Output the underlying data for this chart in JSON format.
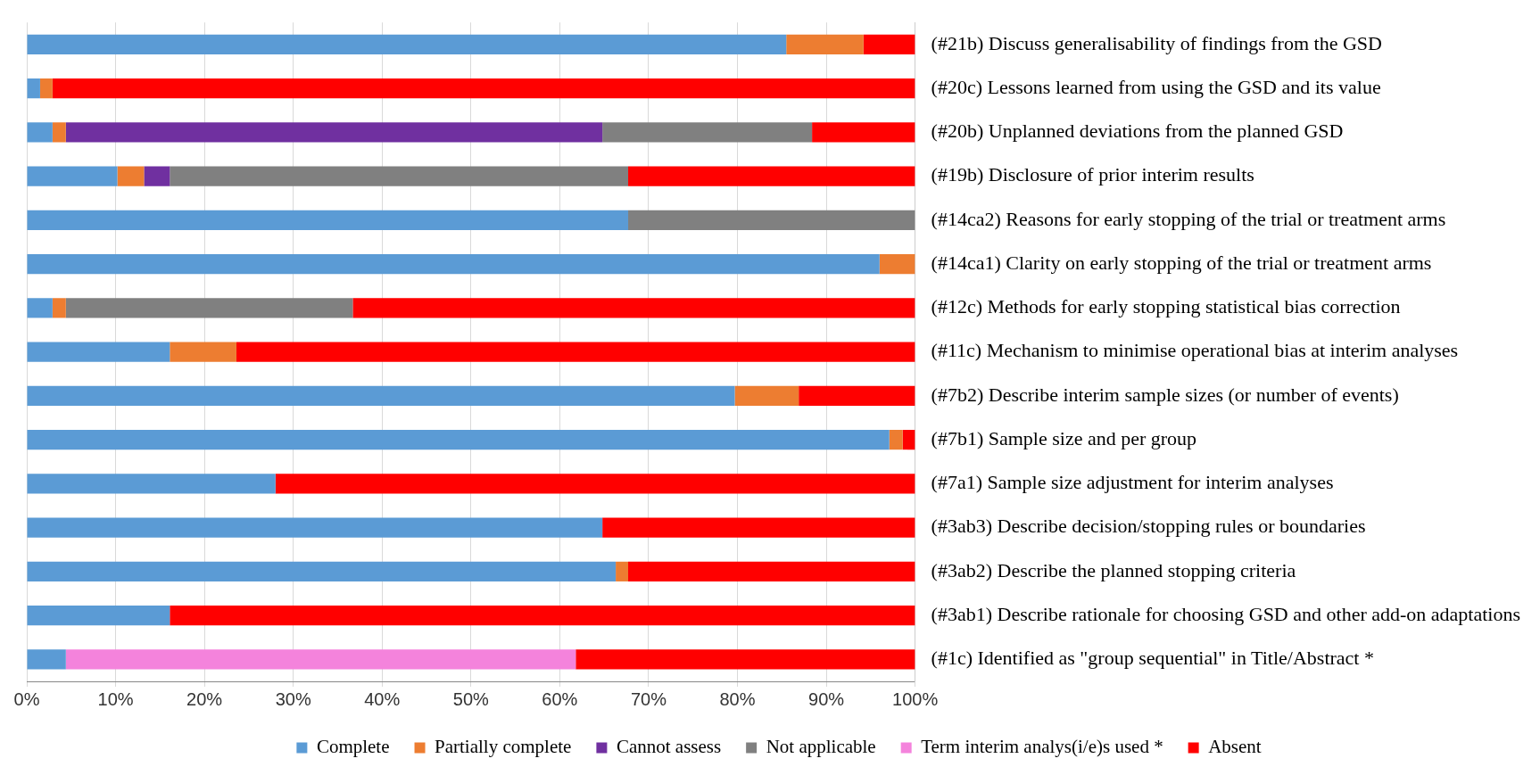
{
  "chart_data": {
    "type": "bar",
    "orientation": "horizontal",
    "stacked": true,
    "categories": [
      "(#21b) Discuss generalisability of findings from the GSD",
      "(#20c) Lessons learned from using the GSD and its value",
      "(#20b) Unplanned deviations from the planned GSD",
      "(#19b) Disclosure of prior interim results",
      "(#14ca2) Reasons for early stopping of the trial or treatment arms",
      "(#14ca1) Clarity on early stopping of the trial or treatment arms",
      "(#12c) Methods for early stopping statistical bias correction",
      "(#11c) Mechanism to minimise operational bias at interim analyses",
      "(#7b2) Describe interim sample sizes (or number of events)",
      "(#7b1) Sample size and per group",
      "(#7a1) Sample size adjustment for interim analyses",
      "(#3ab3) Describe decision/stopping rules or boundaries",
      "(#3ab2) Describe the planned stopping criteria",
      "(#3ab1) Describe rationale for choosing GSD and other add-on adaptations",
      "(#1c) Identified as \"group sequential\" in Title/Abstract *"
    ],
    "series": [
      {
        "name": "Complete",
        "color": "#5b9bd5",
        "values": [
          85.5,
          1.5,
          2.9,
          10.2,
          67.7,
          96.0,
          2.9,
          16.1,
          79.7,
          97.1,
          28.0,
          64.8,
          66.3,
          16.1,
          4.4
        ]
      },
      {
        "name": "Partially complete",
        "color": "#ed7d31",
        "values": [
          8.7,
          1.4,
          1.5,
          3.0,
          null,
          4.0,
          1.5,
          7.5,
          7.2,
          1.5,
          null,
          null,
          1.4,
          null,
          null
        ]
      },
      {
        "name": "Cannot assess",
        "color": "#7030a0",
        "values": [
          null,
          null,
          60.4,
          2.9,
          null,
          null,
          null,
          null,
          null,
          null,
          null,
          null,
          null,
          null,
          null
        ]
      },
      {
        "name": "Not applicable",
        "color": "#808080",
        "values": [
          null,
          null,
          23.6,
          51.6,
          32.3,
          null,
          32.3,
          null,
          null,
          null,
          null,
          null,
          null,
          null,
          null
        ]
      },
      {
        "name": "Term interim analys(i/e)s used *",
        "color": "#f483dc",
        "values": [
          null,
          null,
          null,
          null,
          null,
          null,
          null,
          null,
          null,
          null,
          null,
          null,
          null,
          null,
          57.4
        ]
      },
      {
        "name": "Absent",
        "color": "#ff0000",
        "values": [
          5.8,
          97.1,
          11.6,
          32.3,
          null,
          null,
          63.3,
          76.4,
          13.1,
          1.4,
          72.0,
          35.2,
          32.3,
          83.9,
          38.2
        ]
      }
    ],
    "xlim": [
      0,
      100
    ],
    "xticks": [
      {
        "value": 0,
        "label": "0%"
      },
      {
        "value": 10,
        "label": "10%"
      },
      {
        "value": 20,
        "label": "20%"
      },
      {
        "value": 30,
        "label": "30%"
      },
      {
        "value": 40,
        "label": "40%"
      },
      {
        "value": 50,
        "label": "50%"
      },
      {
        "value": 60,
        "label": "60%"
      },
      {
        "value": 70,
        "label": "70%"
      },
      {
        "value": 80,
        "label": "80%"
      },
      {
        "value": 90,
        "label": "90%"
      },
      {
        "value": 100,
        "label": "100%"
      }
    ],
    "grid": "x",
    "legend": "bottom"
  }
}
